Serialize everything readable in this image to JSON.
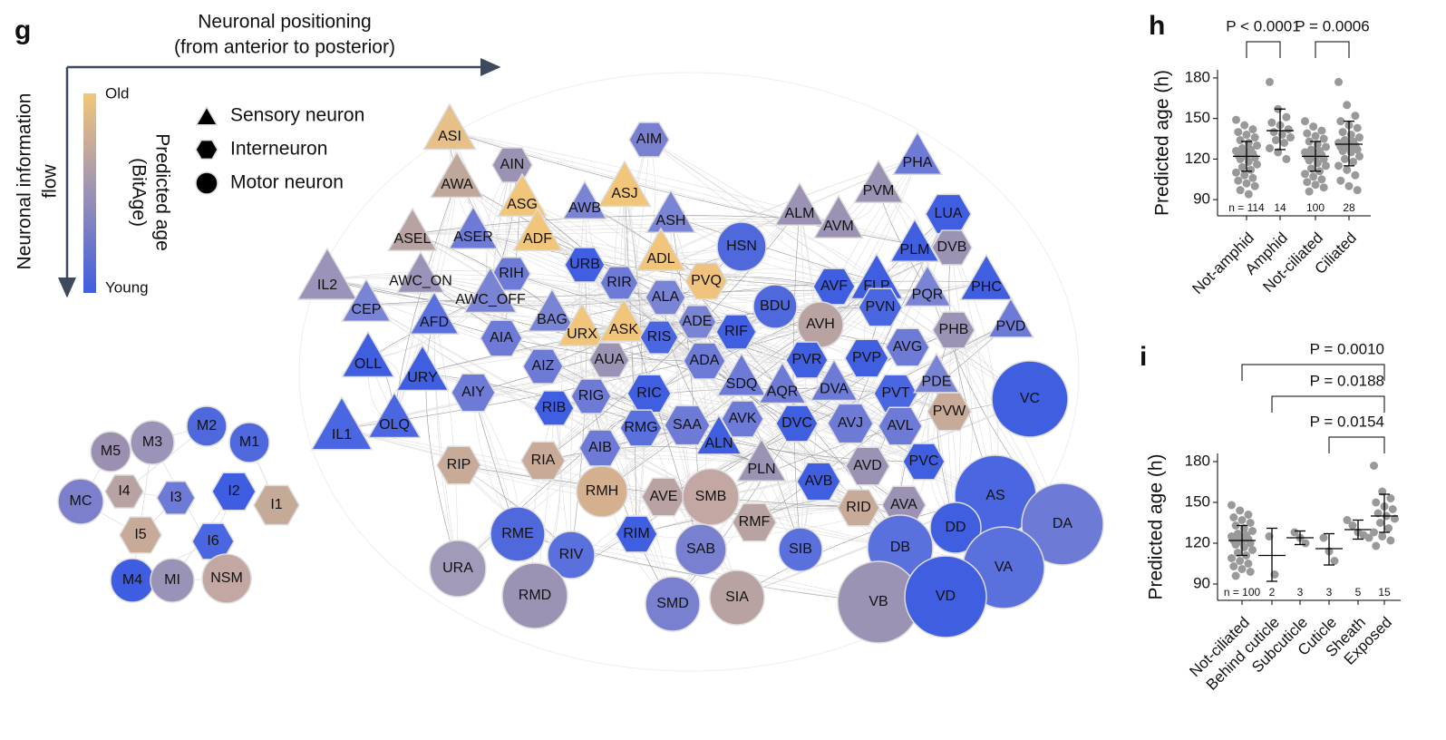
{
  "network": {
    "panel_label": "g",
    "x_axis_title": [
      "Neuronal positioning",
      "(from anterior to posterior)"
    ],
    "y_axis_title": [
      "Neuronal information",
      "flow"
    ],
    "colorbar": {
      "title": [
        "Predicted age",
        "(BitAge)"
      ],
      "high": "Old",
      "low": "Young",
      "colors": [
        "#f2c67a",
        "#9c92b4",
        "#3f5ee0"
      ]
    },
    "shape_legend": [
      {
        "shape": "triangle",
        "label": "Sensory neuron"
      },
      {
        "shape": "hexagon",
        "label": "Interneuron"
      },
      {
        "shape": "circle",
        "label": "Motor neuron"
      }
    ],
    "nodes": [
      {
        "label": "M2",
        "shape": "circle",
        "color": "#4f68dc"
      },
      {
        "label": "M1",
        "shape": "circle",
        "color": "#4f68dc"
      },
      {
        "label": "M3",
        "shape": "circle",
        "color": "#9b93b8"
      },
      {
        "label": "M5",
        "shape": "circle",
        "color": "#9c90b0"
      },
      {
        "label": "MC",
        "shape": "circle",
        "color": "#7c80cc"
      },
      {
        "label": "I4",
        "shape": "hexagon",
        "color": "#b8a3a2"
      },
      {
        "label": "I3",
        "shape": "hexagon",
        "color": "#6d7ad6"
      },
      {
        "label": "I2",
        "shape": "hexagon",
        "color": "#3e5de0"
      },
      {
        "label": "I1",
        "shape": "hexagon",
        "color": "#c6aa98"
      },
      {
        "label": "I5",
        "shape": "hexagon",
        "color": "#c7aa98"
      },
      {
        "label": "I6",
        "shape": "hexagon",
        "color": "#4a66e0"
      },
      {
        "label": "M4",
        "shape": "circle",
        "color": "#3e5de0"
      },
      {
        "label": "MI",
        "shape": "circle",
        "color": "#9a93b8"
      },
      {
        "label": "NSM",
        "shape": "circle",
        "color": "#c2a7a3"
      },
      {
        "label": "ASI",
        "shape": "triangle",
        "color": "#e6bf89"
      },
      {
        "label": "AIN",
        "shape": "hexagon",
        "color": "#9c92b4"
      },
      {
        "label": "AIM",
        "shape": "hexagon",
        "color": "#7a80d0"
      },
      {
        "label": "AWA",
        "shape": "triangle",
        "color": "#c0a79b"
      },
      {
        "label": "ASG",
        "shape": "triangle",
        "color": "#f2c67a"
      },
      {
        "label": "ASJ",
        "shape": "triangle",
        "color": "#f2c67a"
      },
      {
        "label": "AWB",
        "shape": "triangle",
        "color": "#7a84d4"
      },
      {
        "label": "ASH",
        "shape": "triangle",
        "color": "#7a84d4"
      },
      {
        "label": "ASEL",
        "shape": "triangle",
        "color": "#b8a3a2"
      },
      {
        "label": "ASER",
        "shape": "triangle",
        "color": "#6d7ad6"
      },
      {
        "label": "ADF",
        "shape": "triangle",
        "color": "#f2c67a"
      },
      {
        "label": "RIH",
        "shape": "hexagon",
        "color": "#6d7ad6"
      },
      {
        "label": "URB",
        "shape": "hexagon",
        "color": "#3f5ee0"
      },
      {
        "label": "ADL",
        "shape": "triangle",
        "color": "#f2c67a"
      },
      {
        "label": "PVQ",
        "shape": "hexagon",
        "color": "#efc27e"
      },
      {
        "label": "HSN",
        "shape": "circle",
        "color": "#4f68dc"
      },
      {
        "label": "IL2",
        "shape": "triangle",
        "color": "#9b93b8"
      },
      {
        "label": "AWC_ON",
        "shape": "triangle",
        "color": "#9b93b8"
      },
      {
        "label": "AWC_OFF",
        "shape": "triangle",
        "color": "#7a84d4"
      },
      {
        "label": "RIR",
        "shape": "hexagon",
        "color": "#6d7ad6"
      },
      {
        "label": "ALA",
        "shape": "hexagon",
        "color": "#7a84d4"
      },
      {
        "label": "CEP",
        "shape": "triangle",
        "color": "#7a84d4"
      },
      {
        "label": "AFD",
        "shape": "triangle",
        "color": "#5a70dc"
      },
      {
        "label": "BAG",
        "shape": "triangle",
        "color": "#7a84d4"
      },
      {
        "label": "URX",
        "shape": "triangle",
        "color": "#f2c67a"
      },
      {
        "label": "ASK",
        "shape": "triangle",
        "color": "#f2c67a"
      },
      {
        "label": "ADE",
        "shape": "hexagon",
        "color": "#7a84d4"
      },
      {
        "label": "RIS",
        "shape": "hexagon",
        "color": "#4a66e0"
      },
      {
        "label": "AIA",
        "shape": "hexagon",
        "color": "#6d7ad6"
      },
      {
        "label": "AUA",
        "shape": "hexagon",
        "color": "#9c92b4"
      },
      {
        "label": "AIZ",
        "shape": "hexagon",
        "color": "#6d7ad6"
      },
      {
        "label": "ADA",
        "shape": "hexagon",
        "color": "#6d7ad6"
      },
      {
        "label": "RIF",
        "shape": "hexagon",
        "color": "#3f5ee0"
      },
      {
        "label": "BDU",
        "shape": "circle",
        "color": "#4f68dc"
      },
      {
        "label": "OLL",
        "shape": "triangle",
        "color": "#3f5ee0"
      },
      {
        "label": "URY",
        "shape": "triangle",
        "color": "#3f5ee0"
      },
      {
        "label": "AIY",
        "shape": "hexagon",
        "color": "#6d7ad6"
      },
      {
        "label": "RIG",
        "shape": "hexagon",
        "color": "#6d7ad6"
      },
      {
        "label": "RIC",
        "shape": "hexagon",
        "color": "#3f5ee0"
      },
      {
        "label": "SDQ",
        "shape": "triangle",
        "color": "#6d7ad6"
      },
      {
        "label": "RIB",
        "shape": "hexagon",
        "color": "#3f5ee0"
      },
      {
        "label": "AQR",
        "shape": "triangle",
        "color": "#6d7ad6"
      },
      {
        "label": "IL1",
        "shape": "triangle",
        "color": "#4a66e0"
      },
      {
        "label": "OLQ",
        "shape": "triangle",
        "color": "#4a66e0"
      },
      {
        "label": "AVK",
        "shape": "hexagon",
        "color": "#6d7ad6"
      },
      {
        "label": "SAA",
        "shape": "hexagon",
        "color": "#6d7ad6"
      },
      {
        "label": "RMG",
        "shape": "hexagon",
        "color": "#5a70dc"
      },
      {
        "label": "DVC",
        "shape": "hexagon",
        "color": "#3f5ee0"
      },
      {
        "label": "ALN",
        "shape": "triangle",
        "color": "#3f5ee0"
      },
      {
        "label": "AIB",
        "shape": "hexagon",
        "color": "#6d7ad6"
      },
      {
        "label": "PLN",
        "shape": "triangle",
        "color": "#9c92b4"
      },
      {
        "label": "RIP",
        "shape": "hexagon",
        "color": "#c7aa98"
      },
      {
        "label": "RIA",
        "shape": "hexagon",
        "color": "#c7aa98"
      },
      {
        "label": "RMH",
        "shape": "circle",
        "color": "#d4b08e"
      },
      {
        "label": "AVE",
        "shape": "hexagon",
        "color": "#b8a3a2"
      },
      {
        "label": "SMB",
        "shape": "circle",
        "color": "#c2a7a3"
      },
      {
        "label": "RMF",
        "shape": "hexagon",
        "color": "#b8a3a2"
      },
      {
        "label": "RME",
        "shape": "circle",
        "color": "#4f68dc"
      },
      {
        "label": "RIM",
        "shape": "hexagon",
        "color": "#3f5ee0"
      },
      {
        "label": "RIV",
        "shape": "circle",
        "color": "#5a70dc"
      },
      {
        "label": "SAB",
        "shape": "circle",
        "color": "#7a80d0"
      },
      {
        "label": "SIB",
        "shape": "circle",
        "color": "#5a70dc"
      },
      {
        "label": "URA",
        "shape": "circle",
        "color": "#a19ab8"
      },
      {
        "label": "RMD",
        "shape": "circle",
        "color": "#9c92b4"
      },
      {
        "label": "SMD",
        "shape": "circle",
        "color": "#7a80d0"
      },
      {
        "label": "SIA",
        "shape": "circle",
        "color": "#b8a3a2"
      },
      {
        "label": "ALM",
        "shape": "triangle",
        "color": "#9c92b4"
      },
      {
        "label": "AVM",
        "shape": "triangle",
        "color": "#9c92b4"
      },
      {
        "label": "PVM",
        "shape": "triangle",
        "color": "#9c92b4"
      },
      {
        "label": "PHA",
        "shape": "triangle",
        "color": "#6d7ad6"
      },
      {
        "label": "LUA",
        "shape": "hexagon",
        "color": "#3f5ee0"
      },
      {
        "label": "DVB",
        "shape": "hexagon",
        "color": "#9c92b4"
      },
      {
        "label": "PLM",
        "shape": "triangle",
        "color": "#3f5ee0"
      },
      {
        "label": "FLP",
        "shape": "triangle",
        "color": "#3f5ee0"
      },
      {
        "label": "AVF",
        "shape": "hexagon",
        "color": "#3f5ee0"
      },
      {
        "label": "PQR",
        "shape": "triangle",
        "color": "#7a84d4"
      },
      {
        "label": "PHC",
        "shape": "triangle",
        "color": "#3f5ee0"
      },
      {
        "label": "PVN",
        "shape": "hexagon",
        "color": "#4a66e0"
      },
      {
        "label": "AVH",
        "shape": "circle",
        "color": "#b8a3a2"
      },
      {
        "label": "PHB",
        "shape": "hexagon",
        "color": "#9c92b4"
      },
      {
        "label": "PVD",
        "shape": "triangle",
        "color": "#6d7ad6"
      },
      {
        "label": "AVG",
        "shape": "hexagon",
        "color": "#6d7ad6"
      },
      {
        "label": "PVR",
        "shape": "hexagon",
        "color": "#3f5ee0"
      },
      {
        "label": "PVP",
        "shape": "hexagon",
        "color": "#3f5ee0"
      },
      {
        "label": "DVA",
        "shape": "triangle",
        "color": "#6d7ad6"
      },
      {
        "label": "PVT",
        "shape": "hexagon",
        "color": "#4a66e0"
      },
      {
        "label": "PDE",
        "shape": "triangle",
        "color": "#7a84d4"
      },
      {
        "label": "VC",
        "shape": "circle",
        "color": "#3f5ee0"
      },
      {
        "label": "PVW",
        "shape": "hexagon",
        "color": "#c7aa98"
      },
      {
        "label": "AVJ",
        "shape": "hexagon",
        "color": "#6d7ad6"
      },
      {
        "label": "AVL",
        "shape": "hexagon",
        "color": "#6d7ad6"
      },
      {
        "label": "AVD",
        "shape": "hexagon",
        "color": "#9c92b4"
      },
      {
        "label": "PVC",
        "shape": "hexagon",
        "color": "#3f5ee0"
      },
      {
        "label": "AVB",
        "shape": "hexagon",
        "color": "#3f5ee0"
      },
      {
        "label": "RID",
        "shape": "hexagon",
        "color": "#c7aa98"
      },
      {
        "label": "AVA",
        "shape": "hexagon",
        "color": "#9c92b4"
      },
      {
        "label": "AS",
        "shape": "circle",
        "color": "#4a66e0"
      },
      {
        "label": "DA",
        "shape": "circle",
        "color": "#6d7ad6"
      },
      {
        "label": "DD",
        "shape": "circle",
        "color": "#3f5ee0"
      },
      {
        "label": "DB",
        "shape": "circle",
        "color": "#5a70dc"
      },
      {
        "label": "VA",
        "shape": "circle",
        "color": "#5a70dc"
      },
      {
        "label": "VB",
        "shape": "circle",
        "color": "#9c92b4"
      },
      {
        "label": "VD",
        "shape": "circle",
        "color": "#3f5ee0"
      }
    ]
  },
  "chart_data": [
    {
      "type": "strip",
      "title": "h",
      "ylabel": "Predicted age (h)",
      "ylim": [
        78,
        186
      ],
      "yticks": [
        90,
        120,
        150,
        180
      ],
      "color": "#999999",
      "categories": [
        "Not-amphid",
        "Amphid",
        "Not-ciliated",
        "Ciliated"
      ],
      "n_labels": [
        "n = 114",
        "14",
        "100",
        "28"
      ],
      "p_values": [
        "P < 0.0001",
        "P = 0.0006"
      ],
      "groups": [
        {
          "points": [
            149,
            145,
            142,
            140,
            138,
            136,
            134,
            132,
            130,
            128,
            127,
            126,
            125,
            124,
            123,
            122,
            121,
            120,
            118,
            116,
            114,
            112,
            110,
            108,
            106,
            104,
            102,
            100,
            97,
            94
          ],
          "mean": 122,
          "sd_low": 111,
          "sd_high": 133
        },
        {
          "points": [
            177,
            157,
            151,
            147,
            145,
            142,
            140,
            138,
            136,
            134,
            132,
            128,
            125,
            120
          ],
          "mean": 141,
          "sd_low": 127,
          "sd_high": 157
        },
        {
          "points": [
            148,
            144,
            141,
            139,
            137,
            135,
            133,
            131,
            129,
            127,
            126,
            125,
            124,
            123,
            122,
            121,
            120,
            119,
            117,
            115,
            113,
            111,
            109,
            107,
            105,
            103,
            101,
            99,
            96
          ],
          "mean": 122,
          "sd_low": 111,
          "sd_high": 133
        },
        {
          "points": [
            177,
            160,
            152,
            148,
            145,
            143,
            140,
            138,
            136,
            134,
            133,
            132,
            131,
            130,
            129,
            128,
            127,
            126,
            125,
            122,
            120,
            118,
            115,
            112,
            108,
            104,
            100,
            97
          ],
          "mean": 131,
          "sd_low": 115,
          "sd_high": 148
        }
      ]
    },
    {
      "type": "strip",
      "title": "i",
      "ylabel": "Predicted age (h)",
      "ylim": [
        78,
        186
      ],
      "yticks": [
        90,
        120,
        150,
        180
      ],
      "color": "#999999",
      "categories": [
        "Not-ciliated",
        "Behind cuticle",
        "Subcuticle",
        "Cuticle",
        "Sheath",
        "Exposed"
      ],
      "n_labels": [
        "n = 100",
        "2",
        "3",
        "3",
        "5",
        "15"
      ],
      "p_values": [
        "P = 0.0010",
        "P = 0.0188",
        "P = 0.0154"
      ],
      "groups": [
        {
          "points": [
            148,
            144,
            141,
            139,
            137,
            135,
            133,
            131,
            129,
            127,
            126,
            125,
            124,
            123,
            122,
            121,
            120,
            119,
            117,
            115,
            113,
            111,
            109,
            107,
            105,
            103,
            101,
            99,
            96
          ],
          "mean": 122,
          "sd_low": 111,
          "sd_high": 133
        },
        {
          "points": [
            125,
            97
          ],
          "mean": 111,
          "sd_low": 92,
          "sd_high": 131
        },
        {
          "points": [
            128,
            124,
            120
          ],
          "mean": 124,
          "sd_low": 119,
          "sd_high": 129
        },
        {
          "points": [
            124,
            114,
            107
          ],
          "mean": 116,
          "sd_low": 104,
          "sd_high": 127
        },
        {
          "points": [
            137,
            133,
            128,
            126,
            124
          ],
          "mean": 130,
          "sd_low": 123,
          "sd_high": 137
        },
        {
          "points": [
            177,
            158,
            153,
            150,
            147,
            145,
            142,
            140,
            138,
            135,
            131,
            128,
            125,
            122,
            118
          ],
          "mean": 140,
          "sd_low": 128,
          "sd_high": 156
        }
      ]
    }
  ]
}
